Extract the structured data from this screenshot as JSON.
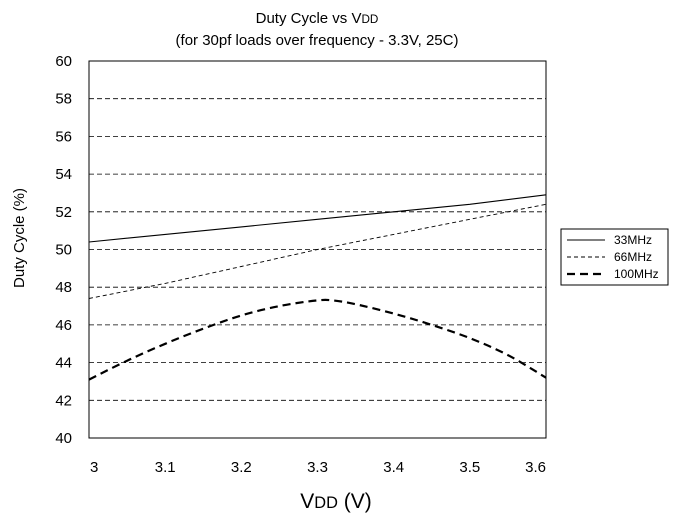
{
  "chart_data": {
    "type": "line",
    "title_main": "Duty Cycle vs V",
    "title_main_sub": "DD",
    "subtitle": "(for 30pf loads over frequency - 3.3V, 25C)",
    "ylabel": "Duty Cycle (%)",
    "xlabel_main": "V",
    "xlabel_sub": "DD",
    "xlabel_unit": " (V)",
    "xlim": [
      3.0,
      3.6
    ],
    "ylim": [
      40,
      60
    ],
    "x_ticks": [
      3.0,
      3.1,
      3.2,
      3.3,
      3.4,
      3.5,
      3.6
    ],
    "x_tick_labels": [
      "3",
      "3.1",
      "3.2",
      "3.3",
      "3.4",
      "3.5",
      "3.6"
    ],
    "y_ticks": [
      40,
      42,
      44,
      46,
      48,
      50,
      52,
      54,
      56,
      58,
      60
    ],
    "y_tick_labels": [
      "40",
      "42",
      "44",
      "46",
      "48",
      "50",
      "52",
      "54",
      "56",
      "58",
      "60"
    ],
    "grid": {
      "horizontal": true,
      "style": "dashed",
      "vertical": false
    },
    "legend_position": "right",
    "series": [
      {
        "name": "33MHz",
        "style": "solid",
        "width": 1.1,
        "x": [
          3.0,
          3.1,
          3.2,
          3.3,
          3.4,
          3.5,
          3.6
        ],
        "y": [
          50.4,
          50.8,
          51.2,
          51.6,
          52.0,
          52.4,
          52.9
        ]
      },
      {
        "name": "66MHz",
        "style": "thin-dashed",
        "width": 0.9,
        "x": [
          3.0,
          3.1,
          3.2,
          3.3,
          3.4,
          3.5,
          3.6
        ],
        "y": [
          47.4,
          48.2,
          49.1,
          50.0,
          50.8,
          51.6,
          52.4
        ]
      },
      {
        "name": "100MHz",
        "style": "thick-dashed",
        "width": 2.2,
        "x": [
          3.0,
          3.05,
          3.1,
          3.15,
          3.2,
          3.25,
          3.3,
          3.32,
          3.35,
          3.4,
          3.45,
          3.5,
          3.55,
          3.6
        ],
        "y": [
          43.1,
          44.1,
          45.0,
          45.8,
          46.5,
          47.0,
          47.3,
          47.3,
          47.1,
          46.6,
          46.0,
          45.3,
          44.4,
          43.2
        ]
      }
    ]
  }
}
